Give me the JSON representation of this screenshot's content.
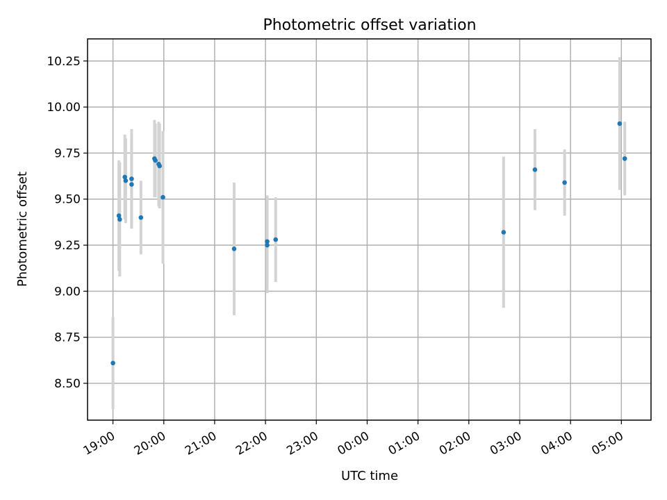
{
  "chart_data": {
    "type": "scatter",
    "title": "Photometric offset variation",
    "xlabel": "UTC time",
    "ylabel": "Photometric offset",
    "x_ticks": [
      "19:00",
      "20:00",
      "21:00",
      "22:00",
      "23:00",
      "00:00",
      "01:00",
      "02:00",
      "03:00",
      "04:00",
      "05:00"
    ],
    "y_ticks": [
      "8.50",
      "8.75",
      "9.00",
      "9.25",
      "9.50",
      "9.75",
      "10.00",
      "10.25"
    ],
    "xlim": [
      "18:30",
      "05:35"
    ],
    "ylim": [
      8.3,
      10.37
    ],
    "grid": true,
    "marker_color": "#1f77b4",
    "errorbar_color": "#d3d3d3",
    "points": [
      {
        "time": "19:00",
        "y": 8.61,
        "err": 0.25
      },
      {
        "time": "19:07",
        "y": 9.41,
        "err": 0.3
      },
      {
        "time": "19:08",
        "y": 9.39,
        "err": 0.31
      },
      {
        "time": "19:14",
        "y": 9.62,
        "err": 0.23
      },
      {
        "time": "19:15",
        "y": 9.6,
        "err": 0.23
      },
      {
        "time": "19:22",
        "y": 9.61,
        "err": 0.27
      },
      {
        "time": "19:22",
        "y": 9.58,
        "err": 0.24
      },
      {
        "time": "19:33",
        "y": 9.4,
        "err": 0.2
      },
      {
        "time": "19:49",
        "y": 9.72,
        "err": 0.21
      },
      {
        "time": "19:50",
        "y": 9.71,
        "err": 0.2
      },
      {
        "time": "19:54",
        "y": 9.69,
        "err": 0.23
      },
      {
        "time": "19:55",
        "y": 9.68,
        "err": 0.23
      },
      {
        "time": "19:59",
        "y": 9.51,
        "err": 0.36
      },
      {
        "time": "21:23",
        "y": 9.23,
        "err": 0.36
      },
      {
        "time": "22:02",
        "y": 9.27,
        "err": 0.25
      },
      {
        "time": "22:02",
        "y": 9.25,
        "err": 0.26
      },
      {
        "time": "22:12",
        "y": 9.28,
        "err": 0.23
      },
      {
        "time": "02:41",
        "y": 9.32,
        "err": 0.41
      },
      {
        "time": "03:18",
        "y": 9.66,
        "err": 0.22
      },
      {
        "time": "03:53",
        "y": 9.59,
        "err": 0.18
      },
      {
        "time": "04:58",
        "y": 9.91,
        "err": 0.36
      },
      {
        "time": "05:04",
        "y": 9.72,
        "err": 0.2
      }
    ]
  }
}
